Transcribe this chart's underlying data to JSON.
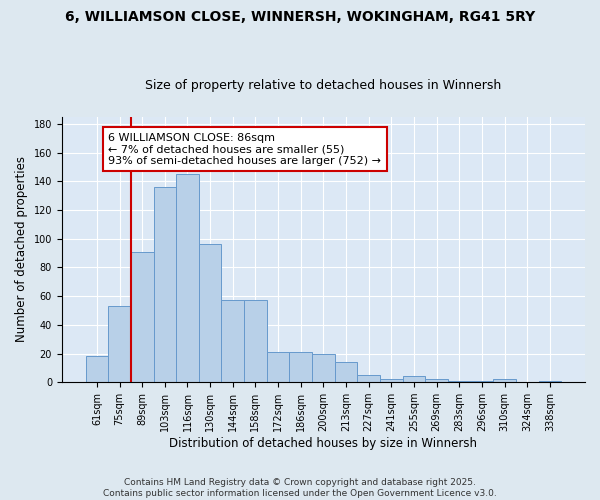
{
  "title": "6, WILLIAMSON CLOSE, WINNERSH, WOKINGHAM, RG41 5RY",
  "subtitle": "Size of property relative to detached houses in Winnersh",
  "xlabel": "Distribution of detached houses by size in Winnersh",
  "ylabel": "Number of detached properties",
  "categories": [
    "61sqm",
    "75sqm",
    "89sqm",
    "103sqm",
    "116sqm",
    "130sqm",
    "144sqm",
    "158sqm",
    "172sqm",
    "186sqm",
    "200sqm",
    "213sqm",
    "227sqm",
    "241sqm",
    "255sqm",
    "269sqm",
    "283sqm",
    "296sqm",
    "310sqm",
    "324sqm",
    "338sqm"
  ],
  "values": [
    18,
    53,
    91,
    136,
    145,
    96,
    57,
    57,
    21,
    21,
    20,
    14,
    5,
    2,
    4,
    2,
    1,
    1,
    2,
    0,
    1
  ],
  "bar_color": "#b8d0e8",
  "bar_edge_color": "#6699cc",
  "annotation_box_color": "#ffffff",
  "annotation_border_color": "#cc0000",
  "vline_color": "#cc0000",
  "vline_x": 1.5,
  "annotation_title": "6 WILLIAMSON CLOSE: 86sqm",
  "annotation_line1": "← 7% of detached houses are smaller (55)",
  "annotation_line2": "93% of semi-detached houses are larger (752) →",
  "footer_line1": "Contains HM Land Registry data © Crown copyright and database right 2025.",
  "footer_line2": "Contains public sector information licensed under the Open Government Licence v3.0.",
  "ylim": [
    0,
    185
  ],
  "yticks": [
    0,
    20,
    40,
    60,
    80,
    100,
    120,
    140,
    160,
    180
  ],
  "background_color": "#dde8f0",
  "plot_background_color": "#dce8f5",
  "grid_color": "#ffffff",
  "title_fontsize": 10,
  "subtitle_fontsize": 9,
  "axis_label_fontsize": 8.5,
  "tick_fontsize": 7,
  "annotation_fontsize": 8,
  "footer_fontsize": 6.5
}
